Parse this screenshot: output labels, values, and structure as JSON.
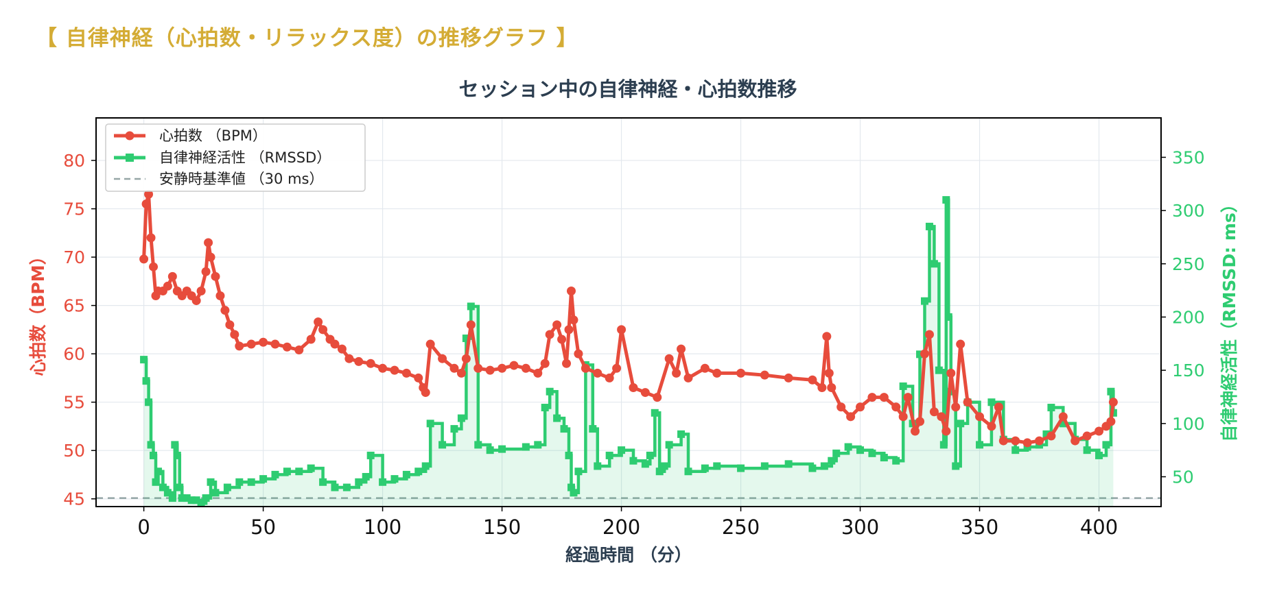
{
  "page_heading": "【 自律神経（心拍数・リラックス度）の推移グラフ 】",
  "chart_data": {
    "type": "line",
    "title": "セッション中の自律神経・心拍数推移",
    "xlabel": "経過時間 （分）",
    "ylabel_left": "心拍数（BPM）",
    "ylabel_right": "自律神経活性（RMSSD: ms）",
    "xlim": [
      -20,
      426
    ],
    "ylim_left": [
      44.2,
      84.4
    ],
    "ylim_right": [
      22,
      387
    ],
    "x_ticks": [
      0,
      50,
      100,
      150,
      200,
      250,
      300,
      350,
      400
    ],
    "y_left_ticks": [
      45,
      50,
      55,
      60,
      65,
      70,
      75,
      80
    ],
    "y_right_ticks": [
      50,
      100,
      150,
      200,
      250,
      300,
      350
    ],
    "grid": true,
    "legend_position": "top-left",
    "colors": {
      "heart_rate": "#e74c3c",
      "rmssd": "#2ecc71",
      "baseline": "#95a5a6",
      "title": "#2c3e50",
      "heading": "#d4ac35"
    },
    "series": [
      {
        "name": "心拍数 （BPM）",
        "axis": "left",
        "x": [
          0,
          1,
          2,
          3,
          4,
          5,
          6,
          8,
          10,
          12,
          14,
          16,
          18,
          20,
          22,
          24,
          26,
          27,
          28,
          30,
          32,
          34,
          36,
          38,
          40,
          45,
          50,
          55,
          60,
          65,
          70,
          73,
          75,
          78,
          80,
          83,
          86,
          90,
          95,
          100,
          105,
          110,
          115,
          117,
          118,
          120,
          125,
          130,
          133,
          135,
          137,
          140,
          145,
          150,
          155,
          160,
          165,
          168,
          170,
          173,
          175,
          177,
          178,
          179,
          180,
          182,
          185,
          190,
          195,
          198,
          200,
          205,
          210,
          215,
          220,
          223,
          225,
          228,
          235,
          240,
          250,
          260,
          270,
          280,
          284,
          286,
          287,
          288,
          292,
          296,
          300,
          305,
          310,
          315,
          318,
          320,
          323,
          325,
          327,
          329,
          331,
          334,
          336,
          338,
          340,
          342,
          345,
          350,
          355,
          358,
          360,
          365,
          370,
          375,
          380,
          385,
          390,
          395,
          400,
          403,
          405,
          406
        ],
        "y": [
          69.8,
          75.5,
          76.5,
          72,
          69,
          66,
          66.5,
          66.5,
          67,
          68,
          66.5,
          66,
          66.5,
          66,
          65.5,
          66.5,
          68.5,
          71.5,
          70,
          68,
          66,
          64.5,
          63,
          62,
          60.8,
          61,
          61.2,
          61,
          60.7,
          60.4,
          61.5,
          63.3,
          62.5,
          61.5,
          61,
          60.5,
          59.5,
          59.2,
          59,
          58.5,
          58.3,
          58,
          57.5,
          56.5,
          56,
          61,
          59.5,
          58.5,
          58,
          59.5,
          63,
          58.5,
          58.3,
          58.5,
          58.8,
          58.5,
          58,
          59,
          62,
          63,
          61.5,
          59,
          62.5,
          66.5,
          63.5,
          60,
          58.5,
          58,
          57.5,
          58.5,
          62.5,
          56.5,
          56,
          55.5,
          59.5,
          58,
          60.5,
          57.5,
          58.5,
          58,
          58,
          57.8,
          57.5,
          57.3,
          56.5,
          61.8,
          58,
          56.5,
          54.5,
          53.5,
          54.5,
          55.5,
          55.5,
          54.5,
          53.5,
          55.5,
          52,
          53,
          60,
          62,
          54,
          53.5,
          52,
          58,
          54.5,
          61,
          55,
          53.5,
          52.5,
          54.5,
          51,
          51,
          50.8,
          51,
          51.5,
          53.5,
          51,
          51.5,
          52,
          52.5,
          53,
          55
        ]
      },
      {
        "name": "自律神経活性 （RMSSD）",
        "axis": "right",
        "x": [
          0,
          1,
          2,
          3,
          4,
          5,
          6,
          8,
          10,
          12,
          13,
          14,
          15,
          16,
          18,
          20,
          22,
          24,
          26,
          28,
          30,
          35,
          40,
          45,
          50,
          55,
          60,
          65,
          70,
          75,
          80,
          85,
          90,
          93,
          95,
          100,
          105,
          110,
          115,
          118,
          120,
          125,
          130,
          133,
          135,
          137,
          140,
          145,
          150,
          160,
          165,
          168,
          170,
          173,
          176,
          178,
          179,
          180,
          182,
          185,
          188,
          190,
          195,
          200,
          205,
          210,
          212,
          214,
          216,
          218,
          220,
          225,
          228,
          235,
          240,
          250,
          260,
          270,
          280,
          285,
          288,
          290,
          295,
          300,
          305,
          310,
          315,
          318,
          322,
          325,
          327,
          329,
          331,
          333,
          335,
          336,
          337,
          338,
          340,
          342,
          345,
          350,
          355,
          360,
          365,
          370,
          375,
          378,
          380,
          385,
          390,
          395,
          400,
          403,
          405,
          406
        ],
        "y": [
          160,
          140,
          120,
          80,
          70,
          45,
          55,
          40,
          35,
          30,
          80,
          70,
          40,
          30,
          30,
          28,
          28,
          25,
          30,
          45,
          35,
          40,
          45,
          45,
          48,
          52,
          55,
          55,
          58,
          45,
          40,
          40,
          45,
          50,
          70,
          45,
          48,
          52,
          55,
          60,
          100,
          80,
          95,
          105,
          180,
          210,
          80,
          75,
          76,
          78,
          80,
          115,
          130,
          105,
          95,
          70,
          40,
          35,
          55,
          155,
          95,
          60,
          70,
          75,
          65,
          62,
          70,
          110,
          55,
          60,
          80,
          90,
          55,
          58,
          60,
          58,
          60,
          62,
          58,
          60,
          65,
          72,
          78,
          75,
          72,
          68,
          65,
          135,
          100,
          165,
          215,
          285,
          250,
          150,
          80,
          310,
          200,
          130,
          60,
          100,
          120,
          80,
          120,
          85,
          75,
          78,
          80,
          90,
          115,
          100,
          85,
          75,
          70,
          80,
          130,
          110
        ]
      },
      {
        "name": "安静時基準値 （30 ms）",
        "axis": "right",
        "style": "dashed",
        "x": [
          -20,
          426
        ],
        "y": [
          30,
          30
        ]
      }
    ]
  }
}
